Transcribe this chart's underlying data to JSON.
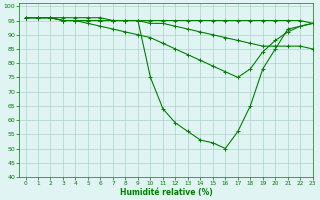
{
  "xlabel": "Humidité relative (%)",
  "xlim": [
    -0.5,
    23
  ],
  "ylim": [
    40,
    101
  ],
  "yticks": [
    40,
    45,
    50,
    55,
    60,
    65,
    70,
    75,
    80,
    85,
    90,
    95,
    100
  ],
  "xticks": [
    0,
    1,
    2,
    3,
    4,
    5,
    6,
    7,
    8,
    9,
    10,
    11,
    12,
    13,
    14,
    15,
    16,
    17,
    18,
    19,
    20,
    21,
    22,
    23
  ],
  "line_color": "#008000",
  "bg_color": "#e0f4f4",
  "grid_color": "#a0ccc0",
  "c1": [
    96,
    96,
    96,
    95,
    95,
    95,
    95,
    95,
    95,
    95,
    95,
    95,
    95,
    95,
    95,
    95,
    95,
    95,
    95,
    95,
    95,
    95,
    95,
    94
  ],
  "c2": [
    96,
    96,
    96,
    95,
    95,
    95,
    95,
    95,
    95,
    95,
    94,
    94,
    93,
    92,
    91,
    90,
    89,
    88,
    87,
    86,
    86,
    86,
    86,
    85
  ],
  "c3": [
    96,
    96,
    96,
    95,
    95,
    94,
    93,
    92,
    91,
    90,
    89,
    87,
    85,
    83,
    81,
    79,
    77,
    75,
    78,
    84,
    88,
    91,
    93,
    94
  ],
  "c4": [
    96,
    96,
    96,
    96,
    96,
    96,
    96,
    95,
    95,
    95,
    75,
    64,
    59,
    56,
    53,
    52,
    50,
    56,
    65,
    78,
    85,
    92,
    93,
    94
  ]
}
